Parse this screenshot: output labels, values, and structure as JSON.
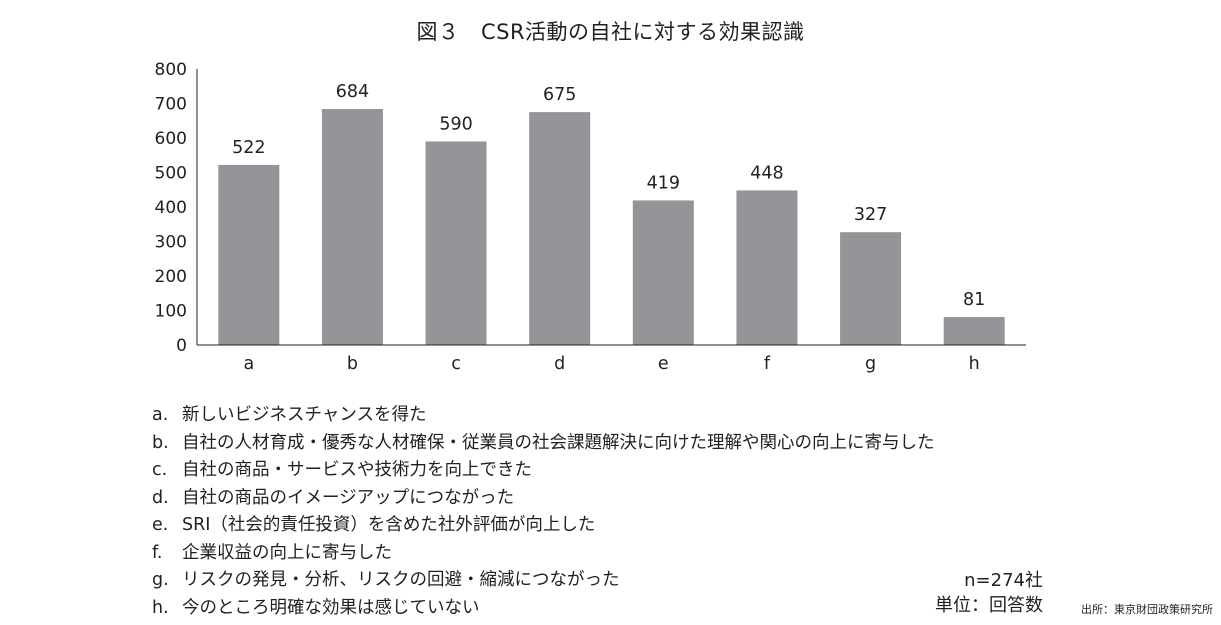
{
  "chart_data": {
    "type": "bar",
    "title": "図３　CSR活動の自社に対する効果認識",
    "categories": [
      "a",
      "b",
      "c",
      "d",
      "e",
      "f",
      "g",
      "h"
    ],
    "values": [
      522,
      684,
      590,
      675,
      419,
      448,
      327,
      81
    ],
    "ylim": [
      0,
      800
    ],
    "yticks": [
      0,
      100,
      200,
      300,
      400,
      500,
      600,
      700,
      800
    ],
    "grid": false,
    "bar_color": "#939598",
    "legend": [
      {
        "key": "a.",
        "text": "新しいビジネスチャンスを得た"
      },
      {
        "key": "b.",
        "text": "自社の人材育成・優秀な人材確保・従業員の社会課題解決に向けた理解や関心の向上に寄与した"
      },
      {
        "key": "c.",
        "text": "自社の商品・サービスや技術力を向上できた"
      },
      {
        "key": "d.",
        "text": "自社の商品のイメージアップにつながった"
      },
      {
        "key": "e.",
        "text": "SRI（社会的責任投資）を含めた社外評価が向上した"
      },
      {
        "key": "f.",
        "text": "企業収益の向上に寄与した"
      },
      {
        "key": "g.",
        "text": "リスクの発見・分析、リスクの回避・縮減につながった"
      },
      {
        "key": "h.",
        "text": "今のところ明確な効果は感じていない"
      }
    ],
    "sample_note": "n=274社",
    "unit_note": "単位：回答数",
    "source": "出所：東京財団政策研究所"
  }
}
